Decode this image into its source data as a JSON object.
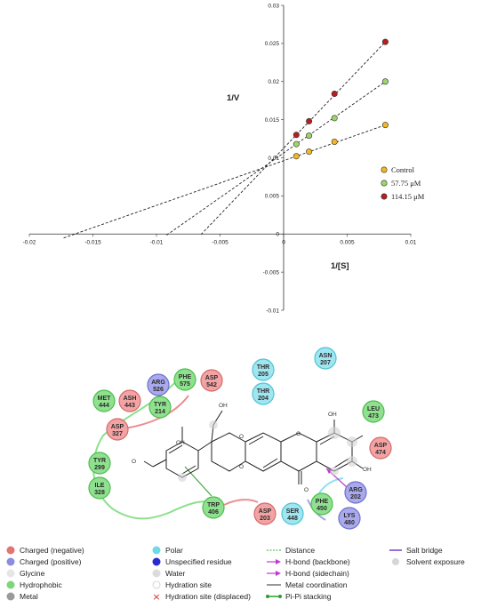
{
  "chart_data": {
    "type": "scatter",
    "xlabel": "1/[S]",
    "ylabel": "1/V",
    "xlim": [
      -0.02,
      0.01
    ],
    "ylim": [
      -0.01,
      0.03
    ],
    "x_ticks": [
      "-0.02",
      "-0.015",
      "-0.01",
      "-0.005",
      "0",
      "0.005",
      "0.01"
    ],
    "y_ticks": [
      "0.03",
      "0.025",
      "0.02",
      "0.015",
      "0.01",
      "0.005",
      "0",
      "-0.005",
      "-0.01"
    ],
    "legend_position": "right",
    "series": [
      {
        "name": "Control",
        "color": "#f2b824",
        "x": [
          0.001,
          0.002,
          0.004,
          0.008
        ],
        "y": [
          0.0102,
          0.0108,
          0.0121,
          0.0143
        ],
        "fit_x_intercept": -0.0173
      },
      {
        "name": "57.75 μM",
        "color": "#9bd66a",
        "x": [
          0.001,
          0.002,
          0.004,
          0.008
        ],
        "y": [
          0.0118,
          0.0129,
          0.0152,
          0.02
        ],
        "fit_x_intercept": -0.0092
      },
      {
        "name": "114.15 μM",
        "color": "#b51f1f",
        "x": [
          0.001,
          0.002,
          0.004,
          0.008
        ],
        "y": [
          0.013,
          0.0148,
          0.0184,
          0.0252
        ],
        "fit_x_intercept": -0.0065
      }
    ]
  },
  "interaction_diagram": {
    "residues": [
      {
        "name": "ARG",
        "num": "526",
        "type": "positive"
      },
      {
        "name": "PHE",
        "num": "575",
        "type": "hydrophobic"
      },
      {
        "name": "ASP",
        "num": "542",
        "type": "negative"
      },
      {
        "name": "MET",
        "num": "444",
        "type": "hydrophobic"
      },
      {
        "name": "ASH",
        "num": "443",
        "type": "negative"
      },
      {
        "name": "TYR",
        "num": "214",
        "type": "hydrophobic"
      },
      {
        "name": "THR",
        "num": "205",
        "type": "polar"
      },
      {
        "name": "ASN",
        "num": "207",
        "type": "polar"
      },
      {
        "name": "THR",
        "num": "204",
        "type": "polar"
      },
      {
        "name": "LEU",
        "num": "473",
        "type": "hydrophobic"
      },
      {
        "name": "ASP",
        "num": "327",
        "type": "negative"
      },
      {
        "name": "ASP",
        "num": "474",
        "type": "negative"
      },
      {
        "name": "TYR",
        "num": "299",
        "type": "hydrophobic"
      },
      {
        "name": "ILE",
        "num": "328",
        "type": "hydrophobic"
      },
      {
        "name": "ARG",
        "num": "202",
        "type": "positive"
      },
      {
        "name": "PHE",
        "num": "450",
        "type": "hydrophobic"
      },
      {
        "name": "TRP",
        "num": "406",
        "type": "hydrophobic"
      },
      {
        "name": "ASP",
        "num": "203",
        "type": "negative"
      },
      {
        "name": "SER",
        "num": "448",
        "type": "polar"
      },
      {
        "name": "LYS",
        "num": "480",
        "type": "positive"
      }
    ],
    "atom_labels": [
      "OH",
      "OH",
      "OH",
      "OH",
      "O",
      "O",
      "O",
      "O",
      "O"
    ],
    "legend": {
      "col1": [
        {
          "label": "Charged (negative)",
          "color": "#e57373"
        },
        {
          "label": "Charged (positive)",
          "color": "#8c8ce0"
        },
        {
          "label": "Glycine",
          "color": "#e6e6e6"
        },
        {
          "label": "Hydrophobic",
          "color": "#7cd67c"
        },
        {
          "label": "Metal",
          "color": "#9a9a9a"
        }
      ],
      "col2": [
        {
          "label": "Polar",
          "color": "#6fd9e8"
        },
        {
          "label": "Unspecified residue",
          "color": "#2b2bd1"
        },
        {
          "label": "Water",
          "color": "#dcdcdc"
        },
        {
          "label": "Hydration site",
          "color": "#ffffff"
        },
        {
          "label": "Hydration site (displaced)",
          "color": "#d62b2b"
        }
      ],
      "col3": [
        {
          "label": "Distance",
          "color": "#55c455"
        },
        {
          "label": "H-bond (backbone)",
          "color": "#c23ad1"
        },
        {
          "label": "H-bond (sidechain)",
          "color": "#c23ad1"
        },
        {
          "label": "Metal coordination",
          "color": "#555555"
        },
        {
          "label": "Pi-Pi stacking",
          "color": "#2e9e2e"
        }
      ],
      "col4": [
        {
          "label": "Salt bridge",
          "color": "#7a3ad1"
        },
        {
          "label": "Solvent exposure",
          "color": "#cccccc"
        }
      ]
    }
  }
}
